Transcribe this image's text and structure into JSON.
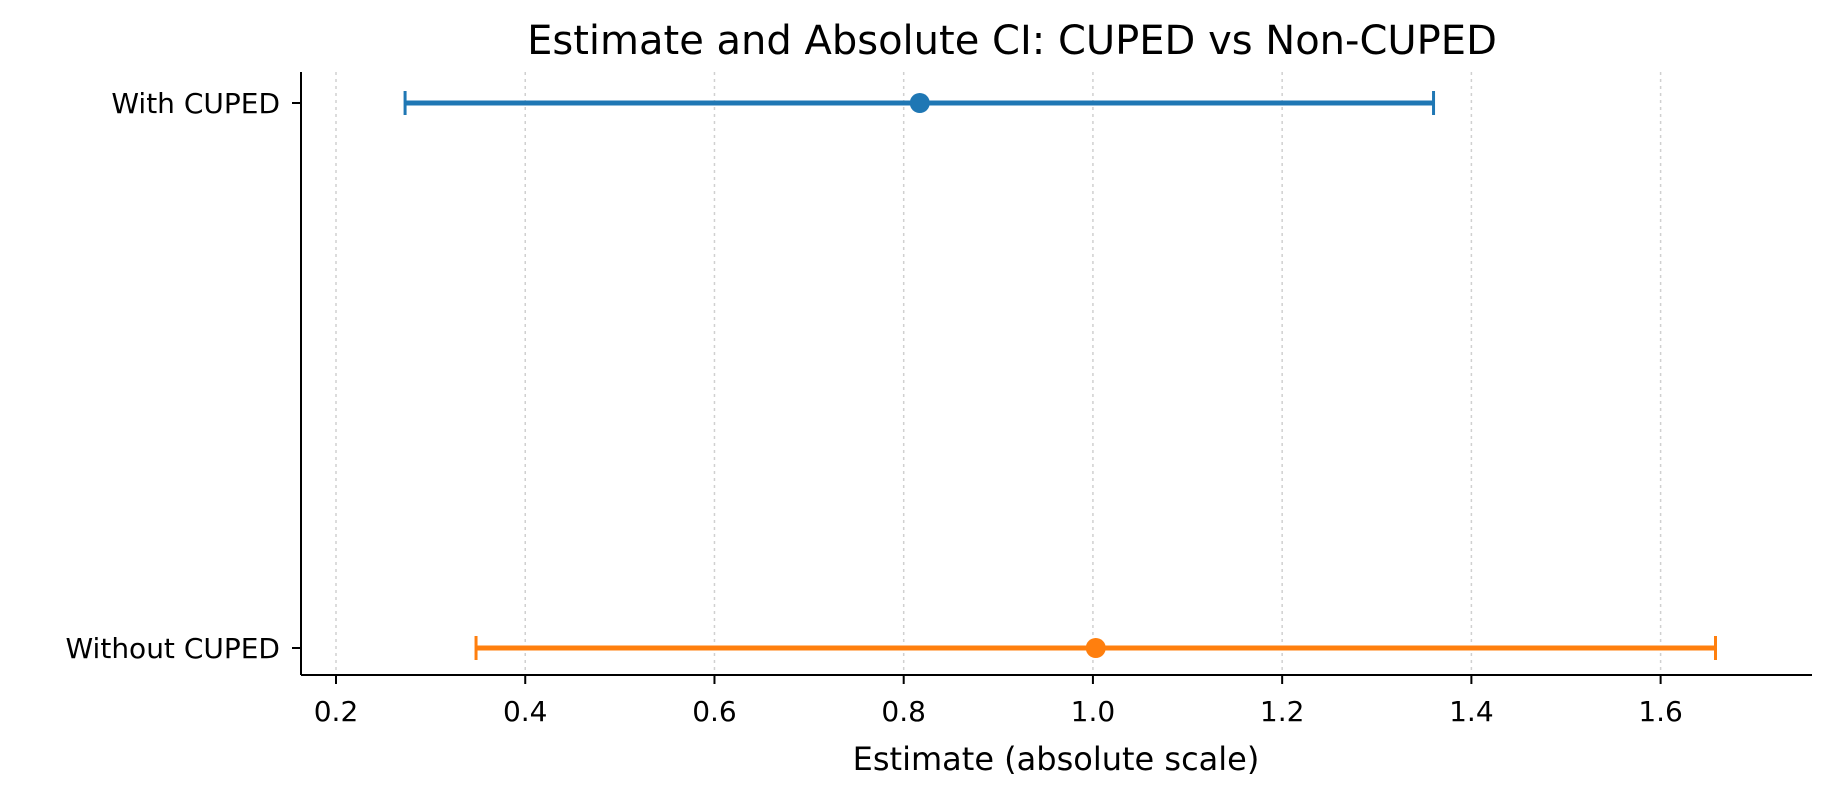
{
  "chart_data": {
    "type": "errorbar",
    "title": "Estimate and Absolute CI: CUPED vs Non-CUPED",
    "xlabel": "Estimate (absolute scale)",
    "ylabel": "",
    "xlim": [
      0.163,
      1.76
    ],
    "xticks": [
      0.2,
      0.4,
      0.6,
      0.8,
      1.0,
      1.2,
      1.4,
      1.6
    ],
    "xtick_labels": [
      "0.2",
      "0.4",
      "0.6",
      "0.8",
      "1.0",
      "1.2",
      "1.4",
      "1.6"
    ],
    "grid": {
      "x": true,
      "y": false,
      "style": "dotted"
    },
    "categories": [
      "With CUPED",
      "Without CUPED"
    ],
    "series": [
      {
        "category": "With CUPED",
        "estimate": 0.817,
        "ci_low": 0.273,
        "ci_high": 1.36,
        "color": "#1f77b4"
      },
      {
        "category": "Without CUPED",
        "estimate": 1.003,
        "ci_low": 0.348,
        "ci_high": 1.658,
        "color": "#ff7f0e"
      }
    ]
  }
}
